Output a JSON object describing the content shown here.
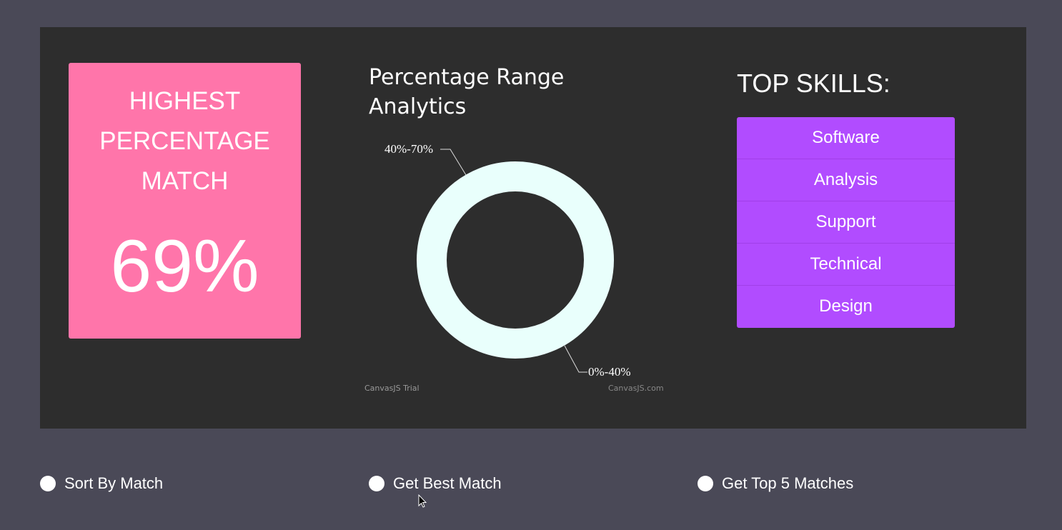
{
  "highest_match": {
    "title_lines": [
      "HIGHEST",
      "PERCENTAGE",
      "MATCH"
    ],
    "value": "69%",
    "color": "#ff75aa"
  },
  "chart_data": {
    "type": "pie",
    "subtype": "doughnut",
    "title": "Percentage Range Analytics",
    "categories": [
      "0%-40%",
      "40%-70%"
    ],
    "values": [
      0,
      1
    ],
    "color": "#e9fffc",
    "watermarks": [
      "CanvasJS Trial",
      "CanvasJS.com"
    ]
  },
  "skills": {
    "title": "TOP SKILLS:",
    "items": [
      "Software",
      "Analysis",
      "Support",
      "Technical",
      "Design"
    ],
    "color": "#b14cff"
  },
  "options": [
    {
      "label": "Sort By Match"
    },
    {
      "label": "Get Best Match"
    },
    {
      "label": "Get Top 5 Matches"
    }
  ]
}
